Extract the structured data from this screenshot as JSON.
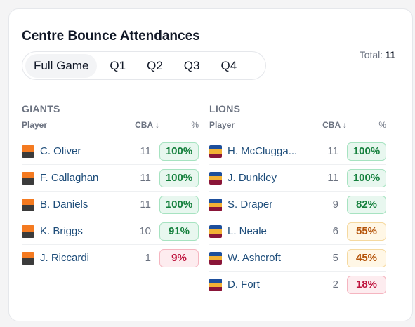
{
  "title": "Centre Bounce Attendances",
  "tabs": [
    "Full Game",
    "Q1",
    "Q2",
    "Q3",
    "Q4"
  ],
  "total": {
    "label": "Total:",
    "value": 11
  },
  "teams": [
    {
      "name": "GIANTS",
      "columns": [
        "Player",
        "CBA ↓",
        "%"
      ],
      "rows": [
        [
          "C. Oliver",
          11,
          "100%"
        ],
        [
          "F. Callaghan",
          11,
          "100%"
        ],
        [
          "B. Daniels",
          11,
          "100%"
        ],
        [
          "K. Briggs",
          10,
          "91%"
        ],
        [
          "J. Riccardi",
          1,
          "9%"
        ]
      ]
    },
    {
      "name": "LIONS",
      "columns": [
        "Player",
        "CBA ↓",
        "%"
      ],
      "rows": [
        [
          "H. McClugga...",
          11,
          "100%"
        ],
        [
          "J. Dunkley",
          11,
          "100%"
        ],
        [
          "S. Draper",
          9,
          "82%"
        ],
        [
          "L. Neale",
          6,
          "55%"
        ],
        [
          "W. Ashcroft",
          5,
          "45%"
        ],
        [
          "D. Fort",
          2,
          "18%"
        ]
      ]
    }
  ]
}
